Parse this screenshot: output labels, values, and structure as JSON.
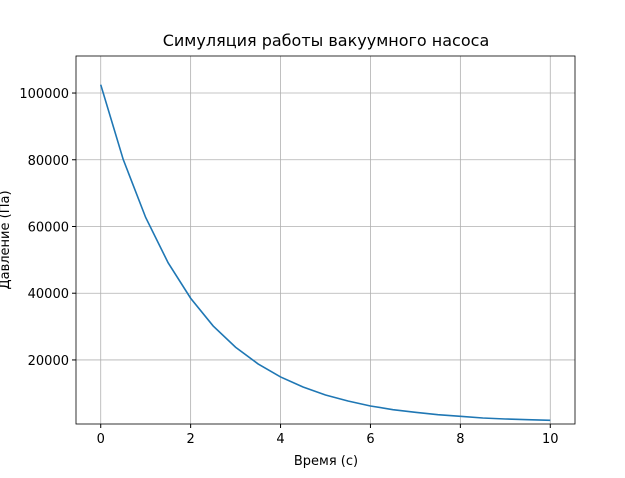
{
  "chart_data": {
    "type": "line",
    "title": "Симуляция работы вакуумного насоса",
    "x_label": "Время (с)",
    "y_label": "Давление (Па)",
    "x": [
      0,
      0.5,
      1,
      1.5,
      2,
      2.5,
      3,
      3.5,
      4,
      4.5,
      5,
      5.5,
      6,
      6.5,
      7,
      7.5,
      8,
      8.5,
      9,
      9.5,
      10
    ],
    "series": [
      {
        "name": "Давление",
        "color": "#1f77b4",
        "values": [
          102500,
          80100,
          62700,
          49100,
          38500,
          30200,
          23800,
          18800,
          14900,
          11900,
          9500,
          7700,
          6200,
          5100,
          4300,
          3600,
          3100,
          2600,
          2300,
          2100,
          1900
        ]
      }
    ],
    "xlim": [
      -0.55,
      10.55
    ],
    "ylim": [
      800,
      111100
    ],
    "xticks": [
      0,
      2,
      4,
      6,
      8,
      10
    ],
    "yticks": [
      20000,
      40000,
      60000,
      80000,
      100000
    ],
    "grid": true
  }
}
